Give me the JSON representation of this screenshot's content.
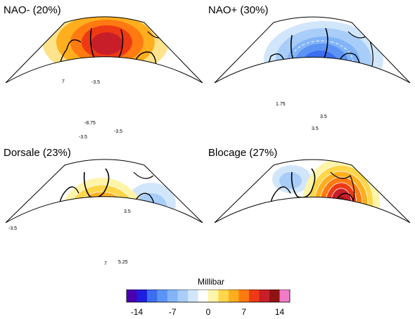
{
  "panels": [
    {
      "id": "nao-minus",
      "title": "NAO- (20%)",
      "labels": [
        "-3.5",
        "-3.5",
        "-8.75",
        "-3.5",
        "7"
      ]
    },
    {
      "id": "nao-plus",
      "title": "NAO+ (30%)",
      "labels": [
        "1.75",
        "3.5",
        "3.5"
      ]
    },
    {
      "id": "dorsale",
      "title": "Dorsale (23%)",
      "labels": [
        "3.5",
        "7",
        "5.25",
        "-3.5"
      ]
    },
    {
      "id": "blocage",
      "title": "Blocage (27%)",
      "labels": []
    }
  ],
  "legend": {
    "title": "Millibar",
    "ticks": [
      "-14",
      "-7",
      "0",
      "7",
      "14"
    ],
    "colors": [
      "#4a00b0",
      "#1e1ee0",
      "#3c6ef0",
      "#5c94f5",
      "#82b4f8",
      "#a8cdf9",
      "#d2e6fb",
      "#ffffff",
      "#fff4a8",
      "#ffd64a",
      "#ffae1e",
      "#ff7a10",
      "#ee3a14",
      "#c81e2a",
      "#8e1414",
      "#f07cc8"
    ]
  }
}
